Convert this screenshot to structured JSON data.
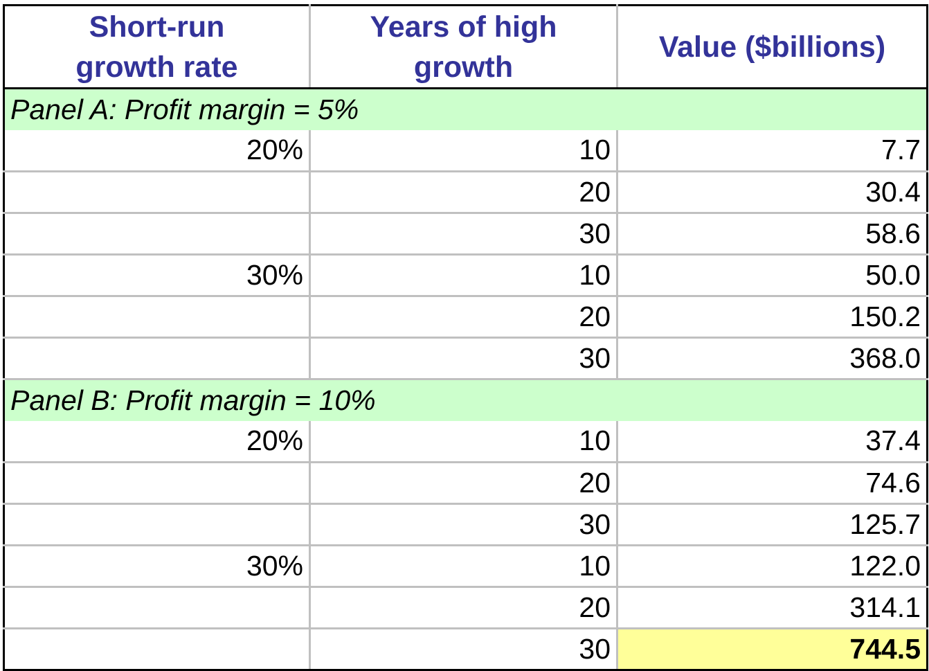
{
  "chart_data": {
    "type": "table",
    "columns": [
      "Short-run growth rate",
      "Years of high growth",
      "Value ($billions)"
    ],
    "panels": [
      {
        "label": "Panel A: Profit margin = 5%",
        "rows": [
          {
            "growth": "20%",
            "years": "10",
            "value": "7.7"
          },
          {
            "growth": "",
            "years": "20",
            "value": "30.4"
          },
          {
            "growth": "",
            "years": "30",
            "value": "58.6"
          },
          {
            "growth": "30%",
            "years": "10",
            "value": "50.0"
          },
          {
            "growth": "",
            "years": "20",
            "value": "150.2"
          },
          {
            "growth": "",
            "years": "30",
            "value": "368.0"
          }
        ]
      },
      {
        "label": "Panel B: Profit margin = 10%",
        "rows": [
          {
            "growth": "20%",
            "years": "10",
            "value": "37.4"
          },
          {
            "growth": "",
            "years": "20",
            "value": "74.6"
          },
          {
            "growth": "",
            "years": "30",
            "value": "125.7"
          },
          {
            "growth": "30%",
            "years": "10",
            "value": "122.0"
          },
          {
            "growth": "",
            "years": "20",
            "value": "314.1"
          },
          {
            "growth": "",
            "years": "30",
            "value": "744.5",
            "highlight": true
          }
        ]
      }
    ]
  },
  "colors": {
    "header_text": "#333399",
    "panel_bg": "#ccffcc",
    "highlight_bg": "#ffff99",
    "grid": "#c0c0c0"
  }
}
